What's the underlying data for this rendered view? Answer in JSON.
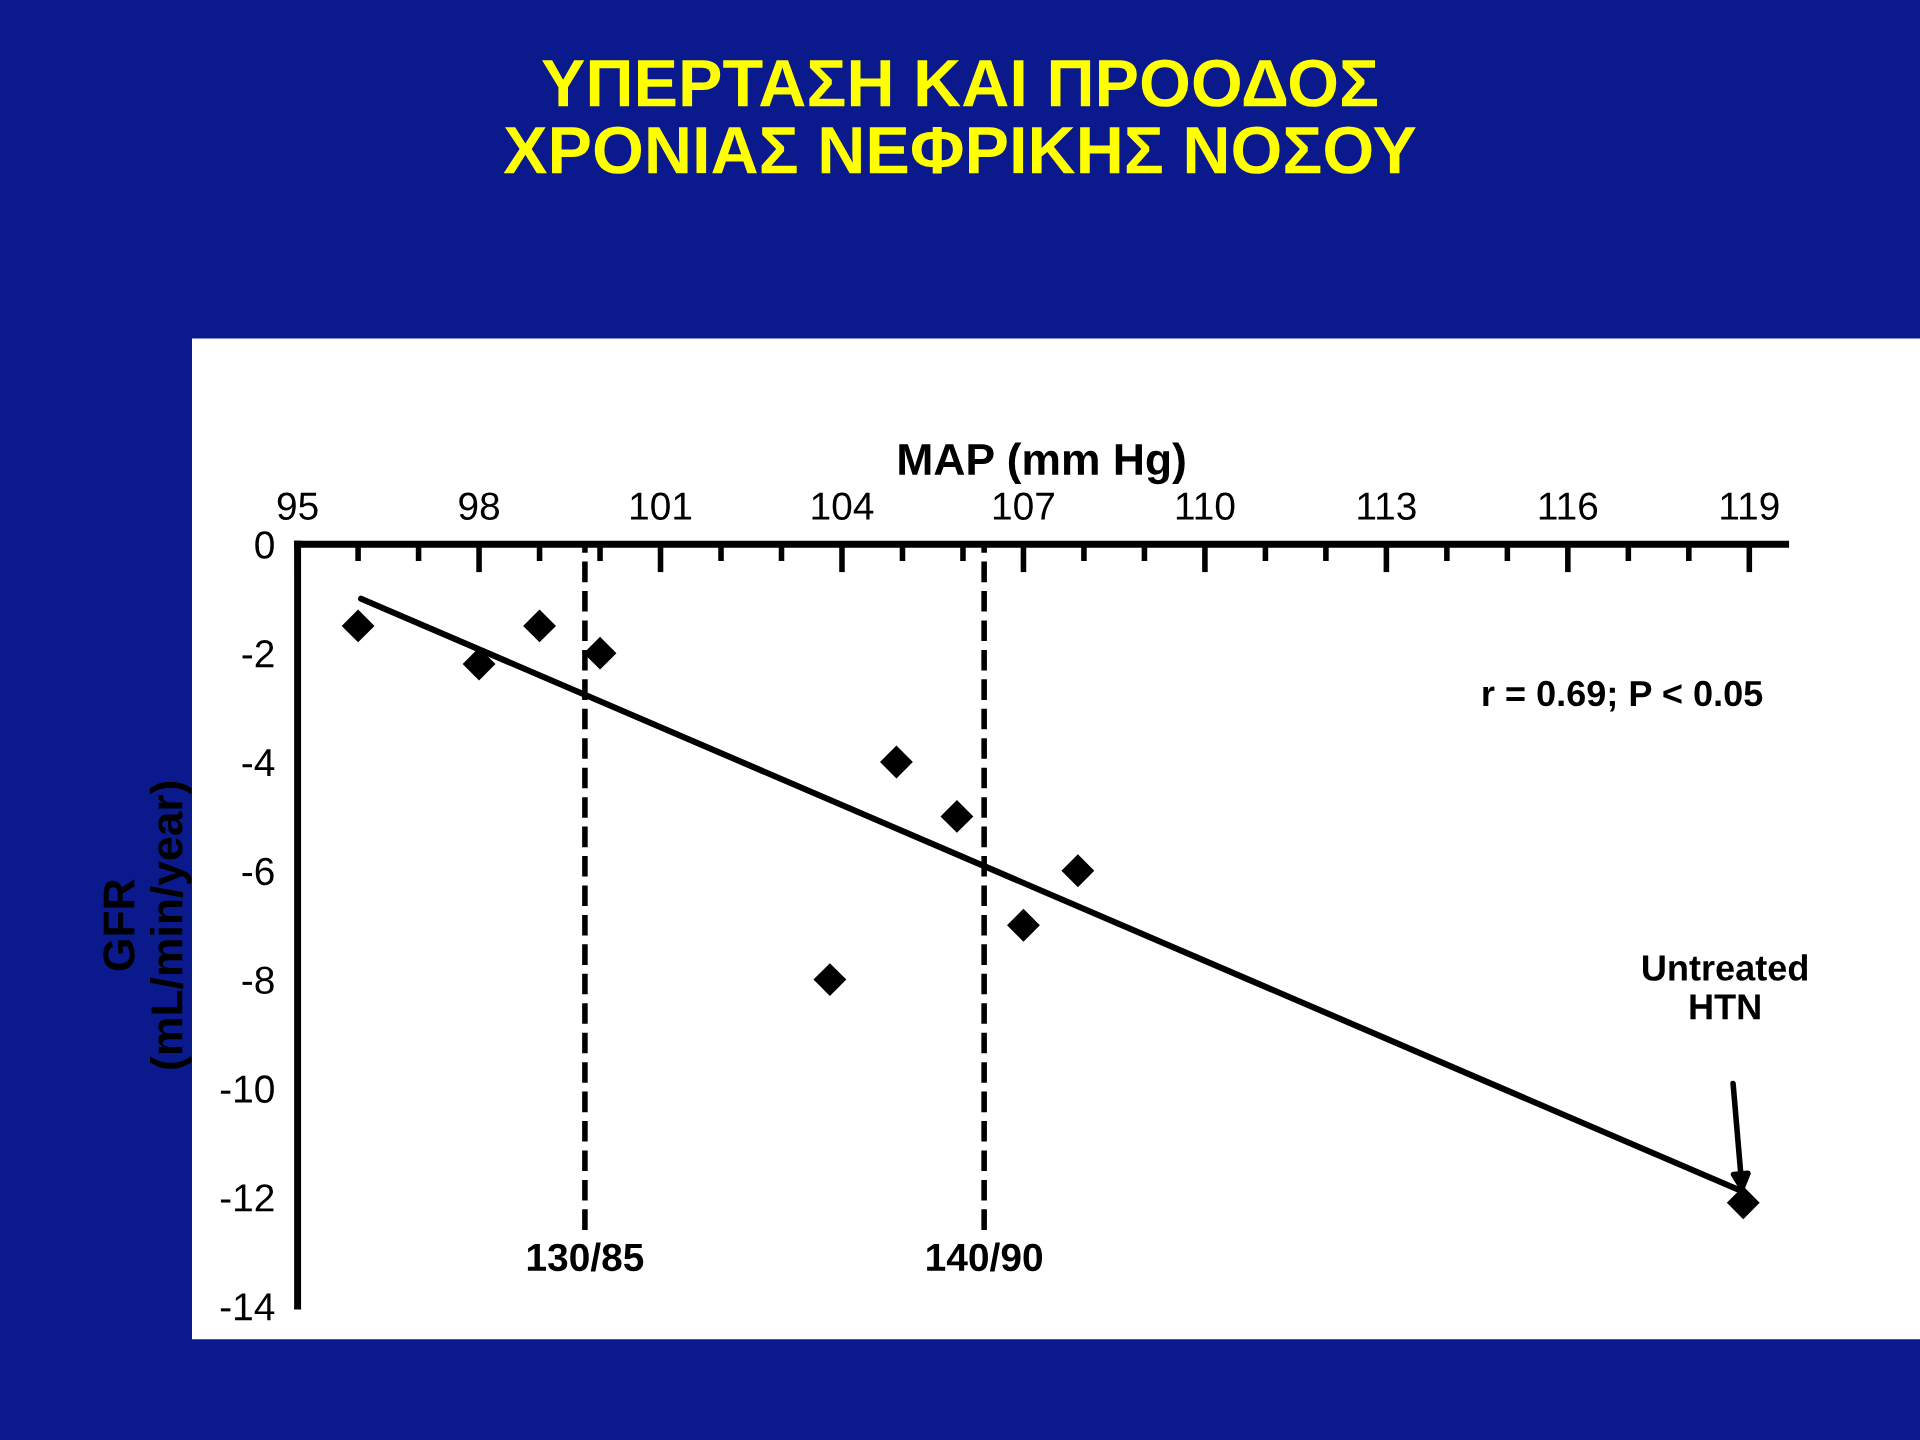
{
  "chart_data": {
    "type": "scatter",
    "title": "ΥΠΕΡΤΑΣΗ ΚΑΙ ΠΡΟΟΔΟΣ\nΧΡΟΝΙΑΣ ΝΕΦΡΙΚΗΣ ΝΟΣΟΥ",
    "xlabel": "MAP (mm Hg)",
    "ylabel": "GFR\n(mL/min/year)",
    "x": [
      96,
      98,
      99,
      100,
      103.8,
      104.9,
      105.9,
      107,
      107.9,
      118.9
    ],
    "series": [
      {
        "type": "scatter",
        "color": "#000000",
        "marker": "diamond",
        "values": [
          -1.5,
          -2.2,
          -1.5,
          -2.0,
          -8,
          -4,
          -5,
          -7,
          -6,
          -12.1
        ]
      },
      {
        "type": "line",
        "color": "#000000",
        "line_style": "solid",
        "x": [
          96.05,
          118.9
        ],
        "values": [
          -1.0,
          -11.9
        ]
      }
    ],
    "xlim": [
      95,
      119.6
    ],
    "ylim": [
      -14,
      0
    ],
    "xticks": [
      95,
      {
        "value": 96,
        "label": null
      },
      {
        "value": 97,
        "label": null
      },
      98,
      {
        "value": 99,
        "label": null
      },
      {
        "value": 100,
        "label": null
      },
      101,
      {
        "value": 102,
        "label": null
      },
      {
        "value": 103,
        "label": null
      },
      104,
      {
        "value": 105,
        "label": null
      },
      {
        "value": 106,
        "label": null
      },
      107,
      {
        "value": 108,
        "label": null
      },
      {
        "value": 109,
        "label": null
      },
      110,
      {
        "value": 111,
        "label": null
      },
      {
        "value": 112,
        "label": null
      },
      113,
      {
        "value": 114,
        "label": null
      },
      {
        "value": 115,
        "label": null
      },
      116,
      {
        "value": 117,
        "label": null
      },
      {
        "value": 118,
        "label": null
      },
      119
    ],
    "yticks": [
      0,
      -2,
      -4,
      -6,
      -8,
      -10,
      -12,
      -14
    ],
    "ref_lines": [
      {
        "axis": "x",
        "value": 99.75,
        "line_style": "dashed",
        "color": "#000000"
      },
      {
        "axis": "x",
        "value": 106.35,
        "line_style": "dashed",
        "color": "#000000"
      }
    ],
    "annotations": [
      "r = 0.69; P < 0.05",
      "Untreated\nHTN",
      "130/85",
      "140/90"
    ],
    "grid": false,
    "legend": false
  }
}
